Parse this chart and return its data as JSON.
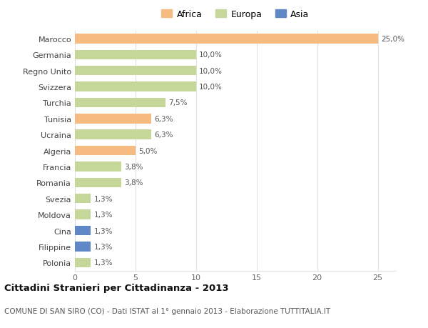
{
  "countries": [
    "Marocco",
    "Germania",
    "Regno Unito",
    "Svizzera",
    "Turchia",
    "Tunisia",
    "Ucraina",
    "Algeria",
    "Francia",
    "Romania",
    "Svezia",
    "Moldova",
    "Cina",
    "Filippine",
    "Polonia"
  ],
  "values": [
    25.0,
    10.0,
    10.0,
    10.0,
    7.5,
    6.3,
    6.3,
    5.0,
    3.8,
    3.8,
    1.3,
    1.3,
    1.3,
    1.3,
    1.3
  ],
  "labels": [
    "25,0%",
    "10,0%",
    "10,0%",
    "10,0%",
    "7,5%",
    "6,3%",
    "6,3%",
    "5,0%",
    "3,8%",
    "3,8%",
    "1,3%",
    "1,3%",
    "1,3%",
    "1,3%",
    "1,3%"
  ],
  "continent": [
    "Africa",
    "Europa",
    "Europa",
    "Europa",
    "Europa",
    "Africa",
    "Europa",
    "Africa",
    "Europa",
    "Europa",
    "Europa",
    "Europa",
    "Asia",
    "Asia",
    "Europa"
  ],
  "colors": {
    "Africa": "#f5bb80",
    "Europa": "#c5d89a",
    "Asia": "#6088c6"
  },
  "legend": [
    "Africa",
    "Europa",
    "Asia"
  ],
  "legend_colors": [
    "#f5bb80",
    "#c5d89a",
    "#6088c6"
  ],
  "title": "Cittadini Stranieri per Cittadinanza - 2013",
  "subtitle": "COMUNE DI SAN SIRO (CO) - Dati ISTAT al 1° gennaio 2013 - Elaborazione TUTTITALIA.IT",
  "xlim": [
    0,
    26.5
  ],
  "xticks": [
    0,
    5,
    10,
    15,
    20,
    25
  ],
  "background_color": "#ffffff",
  "grid_color": "#e0e0e0"
}
